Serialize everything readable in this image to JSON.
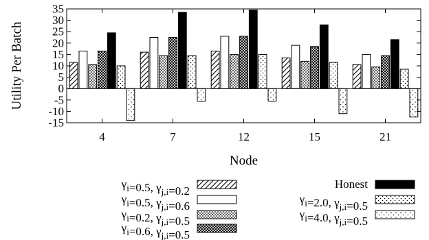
{
  "chart_data": {
    "type": "bar",
    "xlabel": "Node",
    "ylabel": "Utility Per Batch",
    "ylim": [
      -15,
      35
    ],
    "yticks": [
      -15,
      -10,
      -5,
      0,
      5,
      10,
      15,
      20,
      25,
      30,
      35
    ],
    "grid": false,
    "categories": [
      "4",
      "7",
      "12",
      "15",
      "21"
    ],
    "series": [
      {
        "name": "γi=0.5, γj,i=0.2",
        "pattern": "diagonal-hatch",
        "values": [
          11.5,
          16,
          16.5,
          13.5,
          10.5
        ]
      },
      {
        "name": "γi=0.5, γj,i=0.6",
        "pattern": "white",
        "values": [
          16.5,
          22.5,
          23,
          19,
          15
        ]
      },
      {
        "name": "γi=0.2, γj,i=0.5",
        "pattern": "dots",
        "values": [
          10.5,
          14.5,
          15,
          12,
          9.5
        ]
      },
      {
        "name": "γi=0.6, γj,i=0.5",
        "pattern": "crosshatch",
        "values": [
          16.5,
          22.5,
          23,
          18.5,
          14.5
        ]
      },
      {
        "name": "Honest",
        "pattern": "black",
        "values": [
          24.5,
          33.5,
          34.5,
          28,
          21.5
        ]
      },
      {
        "name": "γi=2.0, γj,i=0.5",
        "pattern": "sparse-dots",
        "values": [
          10,
          14.5,
          15,
          11.5,
          8.5
        ]
      },
      {
        "name": "γi=4.0, γj,i=0.5",
        "pattern": "light-dots",
        "values": [
          -14,
          -5.5,
          -5.5,
          -11,
          -12.5
        ]
      }
    ]
  }
}
